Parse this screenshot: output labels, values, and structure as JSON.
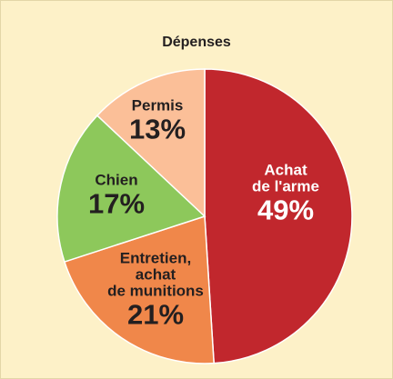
{
  "chart_data": {
    "type": "pie",
    "title": "Dépenses",
    "categories": [
      "Achat\nde l'arme",
      "Entretien,\nachat\nde munitions",
      "Chien",
      "Permis"
    ],
    "values": [
      49,
      21,
      17,
      13
    ],
    "value_labels": [
      "49%",
      "21%",
      "17%",
      "13%"
    ],
    "colors": [
      "#c1272d",
      "#f0874a",
      "#8dc85b",
      "#fbbf98"
    ],
    "label_colors": [
      "#ffffff",
      "#231f20",
      "#231f20",
      "#231f20"
    ]
  }
}
